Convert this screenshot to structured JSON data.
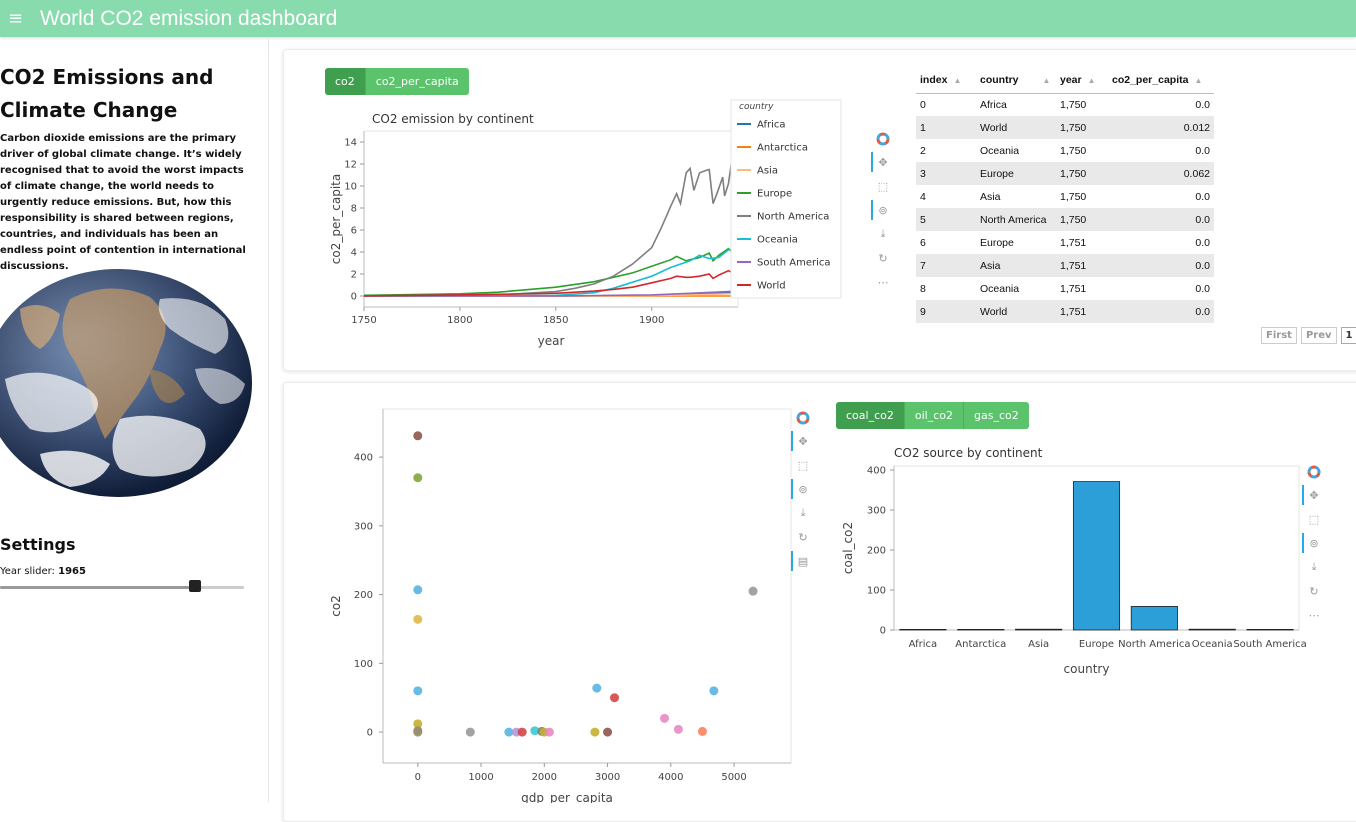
{
  "header": {
    "menu_icon": "≡",
    "title": "World CO2 emission dashboard"
  },
  "sidebar": {
    "title_line1": "CO2 Emissions and",
    "title_line2": "Climate Change",
    "description": "Carbon dioxide emissions are the primary driver of global climate change. It’s widely recognised that to avoid the worst impacts of climate change, the world needs to urgently reduce emissions. But, how this responsibility is shared between regions, countries, and individuals has been an endless point of contention in international discussions.",
    "image": "earth-globe",
    "settings_title": "Settings",
    "slider_label": "Year slider:",
    "slider_value": "1965",
    "slider_fraction": 0.8
  },
  "colors": {
    "header": "#87dbad",
    "button": "#5bc36b",
    "Africa": "#1f77b4",
    "Antarctica": "#ff7f0e",
    "Asia": "#ffbb78",
    "Europe": "#2ca02c",
    "North America": "#7f7f7f",
    "Oceania": "#17becf",
    "South America": "#9467bd",
    "World": "#d62728"
  },
  "tabs_top": [
    {
      "label": "co2",
      "active": true
    },
    {
      "label": "co2_per_capita",
      "active": false
    }
  ],
  "tabs_bottom": [
    {
      "label": "coal_co2",
      "active": true
    },
    {
      "label": "oil_co2",
      "active": false
    },
    {
      "label": "gas_co2",
      "active": false
    }
  ],
  "toolbar_icons": [
    "bokeh-logo-icon",
    "pan-icon",
    "box-zoom-icon",
    "wheel-zoom-icon",
    "save-icon",
    "reset-icon",
    "more-icon"
  ],
  "line_chart": {
    "title": "CO2 emission by continent",
    "xlabel": "year",
    "ylabel": "co2_per_capita",
    "xticks": [
      "1750",
      "1800",
      "1850",
      "1900"
    ],
    "yticks": [
      "0",
      "2",
      "4",
      "6",
      "8",
      "10",
      "12",
      "14"
    ],
    "legend_title": "country",
    "legend": [
      "Africa",
      "Antarctica",
      "Asia",
      "Europe",
      "North America",
      "Oceania",
      "South America",
      "World"
    ]
  },
  "table": {
    "columns": [
      "index",
      "country",
      "year",
      "co2_per_capita"
    ],
    "rows": [
      [
        "0",
        "Africa",
        "1,750",
        "0.0"
      ],
      [
        "1",
        "World",
        "1,750",
        "0.012"
      ],
      [
        "2",
        "Oceania",
        "1,750",
        "0.0"
      ],
      [
        "3",
        "Europe",
        "1,750",
        "0.062"
      ],
      [
        "4",
        "Asia",
        "1,750",
        "0.0"
      ],
      [
        "5",
        "North America",
        "1,750",
        "0.0"
      ],
      [
        "6",
        "Europe",
        "1,751",
        "0.0"
      ],
      [
        "7",
        "Asia",
        "1,751",
        "0.0"
      ],
      [
        "8",
        "Oceania",
        "1,751",
        "0.0"
      ],
      [
        "9",
        "World",
        "1,751",
        "0.0"
      ]
    ],
    "pager": [
      "First",
      "Prev",
      "1"
    ]
  },
  "scatter_chart": {
    "xlabel": "gdp_per_capita",
    "ylabel": "co2",
    "xticks": [
      "0",
      "1000",
      "2000",
      "3000",
      "4000",
      "5000"
    ],
    "yticks": [
      "0",
      "100",
      "200",
      "300",
      "400"
    ]
  },
  "bar_chart": {
    "title": "CO2 source by continent",
    "xlabel": "country",
    "ylabel": "coal_co2",
    "yticks": [
      "0",
      "100",
      "200",
      "300",
      "400"
    ]
  },
  "chart_data": [
    {
      "type": "line",
      "title": "CO2 emission by continent",
      "xlabel": "year",
      "ylabel": "co2_per_capita",
      "xlim": [
        1750,
        1945
      ],
      "ylim": [
        -1,
        15
      ],
      "legend_position": "right",
      "series": [
        {
          "name": "Africa",
          "x": [
            1750,
            1850,
            1900,
            1920,
            1940,
            1945
          ],
          "y": [
            0,
            0,
            0.05,
            0.15,
            0.3,
            0.35
          ]
        },
        {
          "name": "Antarctica",
          "x": [
            1750,
            1945
          ],
          "y": [
            0,
            0
          ]
        },
        {
          "name": "Asia",
          "x": [
            1750,
            1850,
            1900,
            1920,
            1940,
            1945
          ],
          "y": [
            0,
            0,
            0.05,
            0.1,
            0.2,
            0.2
          ]
        },
        {
          "name": "Europe",
          "x": [
            1750,
            1800,
            1820,
            1850,
            1870,
            1880,
            1890,
            1900,
            1910,
            1913,
            1918,
            1920,
            1925,
            1930,
            1932,
            1935,
            1940,
            1945
          ],
          "y": [
            0.06,
            0.2,
            0.35,
            0.8,
            1.3,
            1.7,
            2.1,
            2.7,
            3.3,
            3.6,
            3.2,
            3.3,
            3.5,
            3.9,
            3.2,
            3.7,
            4.3,
            3.5
          ]
        },
        {
          "name": "North America",
          "x": [
            1750,
            1800,
            1820,
            1850,
            1860,
            1870,
            1880,
            1890,
            1900,
            1905,
            1910,
            1913,
            1915,
            1918,
            1920,
            1922,
            1925,
            1928,
            1930,
            1932,
            1934,
            1937,
            1938,
            1940,
            1942,
            1943,
            1944,
            1945
          ],
          "y": [
            0,
            0.05,
            0.1,
            0.4,
            0.7,
            1.1,
            1.8,
            2.9,
            4.4,
            6.2,
            8.2,
            9.3,
            8.4,
            11.2,
            11.6,
            9.6,
            11.2,
            11.4,
            11.5,
            8.4,
            9.3,
            10.8,
            9.1,
            10.2,
            12.6,
            13.5,
            10.0,
            11.5
          ]
        },
        {
          "name": "Oceania",
          "x": [
            1750,
            1850,
            1870,
            1880,
            1900,
            1910,
            1920,
            1925,
            1930,
            1935,
            1940,
            1945
          ],
          "y": [
            0,
            0.05,
            0.3,
            0.7,
            1.8,
            2.6,
            3.2,
            3.7,
            3.4,
            3.5,
            4.2,
            4.3
          ]
        },
        {
          "name": "South America",
          "x": [
            1750,
            1850,
            1900,
            1920,
            1940,
            1945
          ],
          "y": [
            0,
            0,
            0.1,
            0.25,
            0.4,
            0.45
          ]
        },
        {
          "name": "World",
          "x": [
            1750,
            1800,
            1820,
            1850,
            1870,
            1880,
            1890,
            1900,
            1910,
            1913,
            1918,
            1920,
            1925,
            1930,
            1932,
            1935,
            1940,
            1945
          ],
          "y": [
            0.012,
            0.1,
            0.15,
            0.25,
            0.45,
            0.6,
            0.8,
            1.2,
            1.6,
            1.8,
            1.7,
            1.7,
            1.8,
            2.0,
            1.6,
            1.9,
            2.3,
            1.9
          ]
        }
      ]
    },
    {
      "type": "scatter",
      "xlabel": "gdp_per_capita",
      "ylabel": "co2",
      "xlim": [
        -550,
        5900
      ],
      "ylim": [
        -45,
        470
      ],
      "points": [
        {
          "x": 0,
          "y": 431,
          "color": "#8c564b"
        },
        {
          "x": 0,
          "y": 370,
          "color": "#7fa63a"
        },
        {
          "x": 0,
          "y": 207,
          "color": "#5ab4e0"
        },
        {
          "x": 0,
          "y": 164,
          "color": "#e0b84a"
        },
        {
          "x": 0,
          "y": 60,
          "color": "#5ab4e0"
        },
        {
          "x": 0,
          "y": 12,
          "color": "#c5b02e"
        },
        {
          "x": 0,
          "y": 2,
          "color": "#8c8c8c"
        },
        {
          "x": 0,
          "y": 0,
          "color": "#9a8f6b"
        },
        {
          "x": 830,
          "y": 0,
          "color": "#999999"
        },
        {
          "x": 1440,
          "y": 0,
          "color": "#5ab4e0"
        },
        {
          "x": 1560,
          "y": 0,
          "color": "#b099d9"
        },
        {
          "x": 1650,
          "y": 0,
          "color": "#d64545"
        },
        {
          "x": 1850,
          "y": 2,
          "color": "#3fc9d4"
        },
        {
          "x": 1960,
          "y": 1,
          "color": "#7f7f7f"
        },
        {
          "x": 2000,
          "y": 0,
          "color": "#c5b02e"
        },
        {
          "x": 2080,
          "y": 0,
          "color": "#e78ac3"
        },
        {
          "x": 2800,
          "y": 0,
          "color": "#c5b02e"
        },
        {
          "x": 2830,
          "y": 64,
          "color": "#5ab4e0"
        },
        {
          "x": 3000,
          "y": 0,
          "color": "#8c564b"
        },
        {
          "x": 3110,
          "y": 50,
          "color": "#d64545"
        },
        {
          "x": 3900,
          "y": 20,
          "color": "#e78ac3"
        },
        {
          "x": 4120,
          "y": 4,
          "color": "#e78ac3"
        },
        {
          "x": 4500,
          "y": 1,
          "color": "#ff7f5e"
        },
        {
          "x": 4680,
          "y": 60,
          "color": "#5ab4e0"
        },
        {
          "x": 5300,
          "y": 205,
          "color": "#999999"
        }
      ]
    },
    {
      "type": "bar",
      "title": "CO2 source by continent",
      "xlabel": "country",
      "ylabel": "coal_co2",
      "ylim": [
        0,
        410
      ],
      "categories": [
        "Africa",
        "Antarctica",
        "Asia",
        "Europe",
        "North America",
        "Oceania",
        "South America"
      ],
      "values": [
        0.5,
        0,
        2,
        371,
        59,
        2,
        0.5
      ],
      "bar_color": "#2d9fd8"
    }
  ]
}
